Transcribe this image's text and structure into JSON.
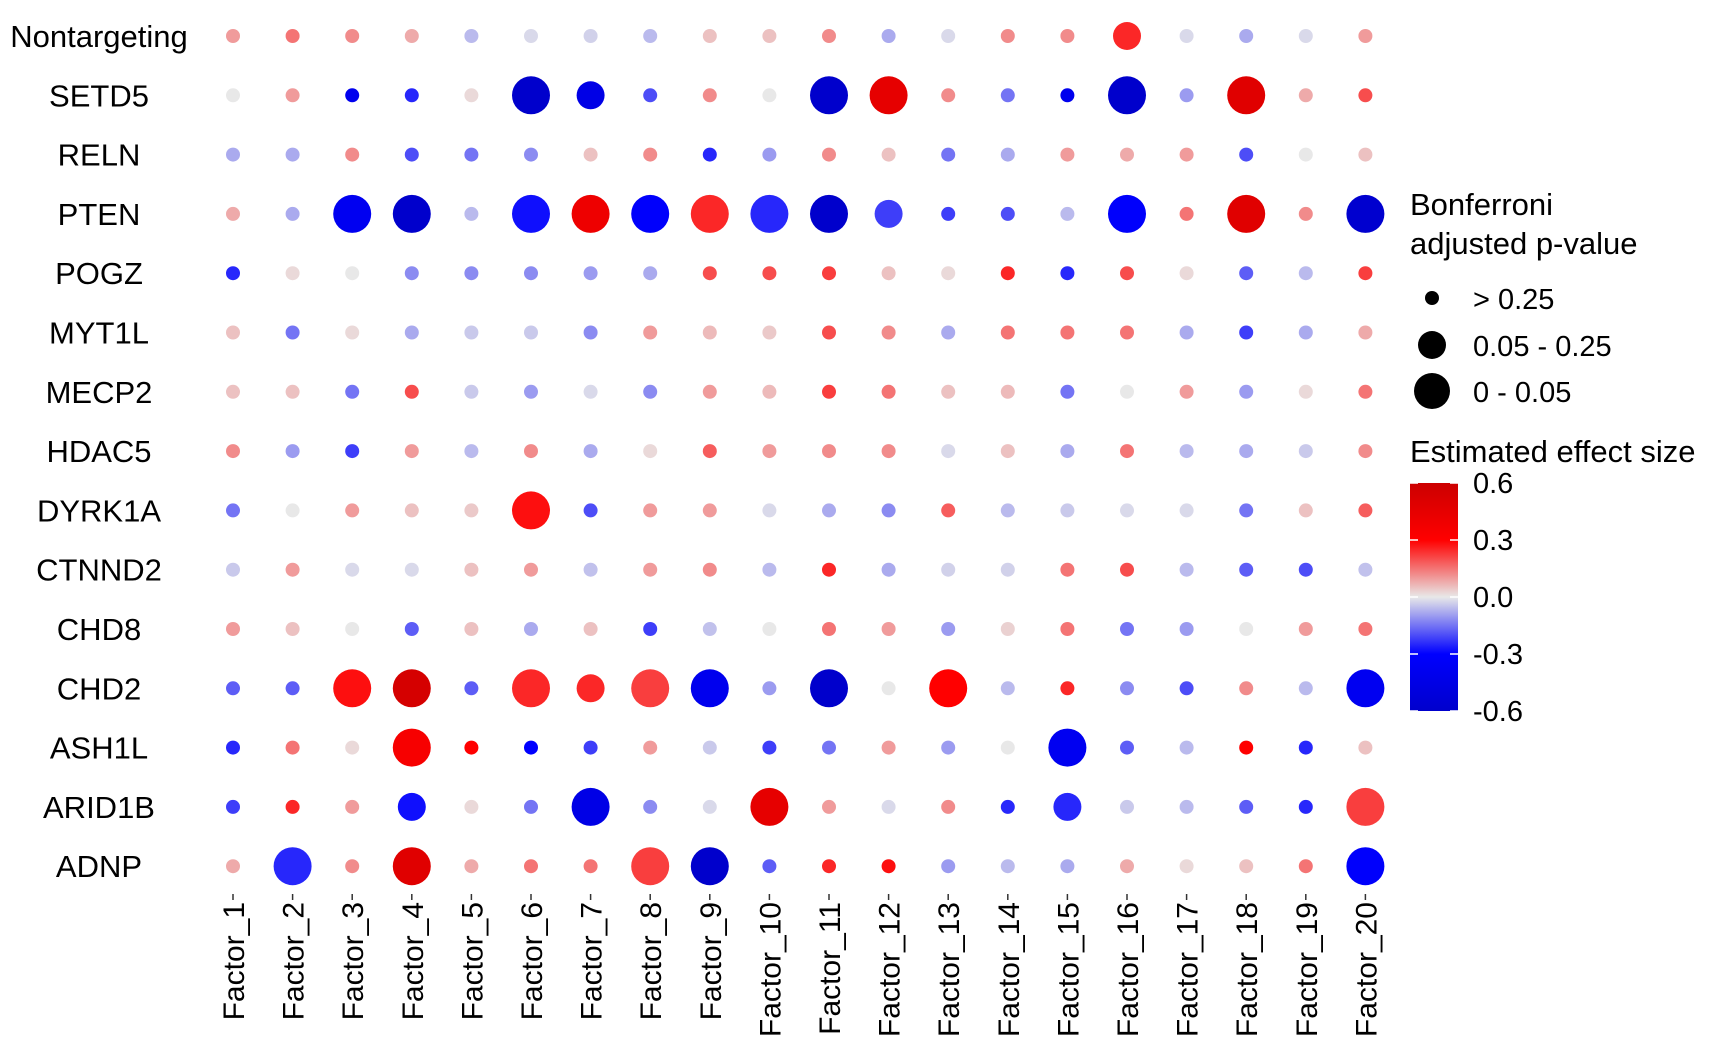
{
  "chart_data": {
    "type": "dot-heatmap",
    "rows": [
      "Nontargeting",
      "SETD5",
      "RELN",
      "PTEN",
      "POGZ",
      "MYT1L",
      "MECP2",
      "HDAC5",
      "DYRK1A",
      "CTNND2",
      "CHD8",
      "CHD2",
      "ASH1L",
      "ARID1B",
      "ADNP"
    ],
    "columns": [
      "Factor_1",
      "Factor_2",
      "Factor_3",
      "Factor_4",
      "Factor_5",
      "Factor_6",
      "Factor_7",
      "Factor_8",
      "Factor_9",
      "Factor_10",
      "Factor_11",
      "Factor_12",
      "Factor_13",
      "Factor_14",
      "Factor_15",
      "Factor_16",
      "Factor_17",
      "Factor_18",
      "Factor_19",
      "Factor_20"
    ],
    "effect": [
      [
        0.1,
        0.15,
        0.12,
        0.08,
        -0.06,
        -0.02,
        -0.03,
        -0.06,
        0.05,
        0.05,
        0.12,
        -0.08,
        -0.02,
        0.12,
        0.12,
        0.25,
        -0.02,
        -0.08,
        -0.02,
        0.1
      ],
      [
        0.0,
        0.1,
        -0.4,
        -0.25,
        0.02,
        -0.62,
        -0.45,
        -0.2,
        0.12,
        0.0,
        -0.68,
        0.45,
        0.12,
        -0.15,
        -0.4,
        -0.62,
        -0.1,
        0.48,
        0.08,
        0.2
      ],
      [
        -0.08,
        -0.08,
        0.12,
        -0.2,
        -0.15,
        -0.12,
        0.05,
        0.12,
        -0.25,
        -0.1,
        0.12,
        0.05,
        -0.15,
        -0.08,
        0.1,
        0.08,
        0.1,
        -0.2,
        0.0,
        0.05
      ],
      [
        0.08,
        -0.08,
        -0.38,
        -0.65,
        -0.06,
        -0.28,
        0.4,
        -0.32,
        0.25,
        -0.25,
        -0.62,
        -0.22,
        -0.22,
        -0.2,
        -0.06,
        -0.32,
        0.15,
        0.48,
        0.12,
        -0.58
      ],
      [
        -0.25,
        0.02,
        0.0,
        -0.12,
        -0.12,
        -0.12,
        -0.1,
        -0.08,
        0.2,
        0.2,
        0.22,
        0.05,
        0.02,
        0.25,
        -0.25,
        0.2,
        0.02,
        -0.18,
        -0.06,
        0.22
      ],
      [
        0.05,
        -0.15,
        0.02,
        -0.08,
        -0.04,
        -0.04,
        -0.12,
        0.1,
        0.06,
        0.04,
        0.2,
        0.12,
        -0.08,
        0.15,
        0.15,
        0.15,
        -0.08,
        -0.22,
        -0.08,
        0.08
      ],
      [
        0.05,
        0.05,
        -0.15,
        0.2,
        -0.04,
        -0.1,
        -0.02,
        -0.12,
        0.1,
        0.06,
        0.22,
        0.15,
        0.05,
        0.06,
        -0.15,
        0.0,
        0.1,
        -0.1,
        0.02,
        0.15
      ],
      [
        0.12,
        -0.1,
        -0.22,
        0.1,
        -0.06,
        0.12,
        -0.08,
        0.02,
        0.18,
        0.1,
        0.12,
        0.12,
        -0.02,
        0.05,
        -0.08,
        0.15,
        -0.06,
        -0.08,
        -0.04,
        0.12
      ],
      [
        -0.15,
        0.0,
        0.1,
        0.05,
        0.04,
        0.28,
        -0.2,
        0.1,
        0.1,
        -0.02,
        -0.08,
        -0.12,
        0.18,
        -0.06,
        -0.04,
        -0.02,
        -0.02,
        -0.15,
        0.05,
        0.18
      ],
      [
        -0.04,
        0.1,
        -0.02,
        -0.02,
        0.05,
        0.1,
        -0.05,
        0.1,
        0.12,
        -0.06,
        0.25,
        -0.08,
        -0.03,
        -0.03,
        0.15,
        0.2,
        -0.06,
        -0.18,
        -0.2,
        -0.05
      ],
      [
        0.1,
        0.05,
        0.0,
        -0.18,
        0.05,
        -0.08,
        0.05,
        -0.22,
        -0.05,
        0.0,
        0.15,
        0.1,
        -0.1,
        0.03,
        0.15,
        -0.15,
        -0.1,
        0.0,
        0.1,
        0.15
      ],
      [
        -0.18,
        -0.18,
        0.28,
        0.55,
        -0.18,
        0.25,
        0.25,
        0.22,
        -0.4,
        -0.1,
        -0.62,
        0.0,
        0.3,
        -0.06,
        0.25,
        -0.12,
        -0.2,
        0.12,
        -0.06,
        -0.38
      ],
      [
        -0.25,
        0.15,
        0.02,
        0.35,
        0.3,
        -0.3,
        -0.22,
        0.1,
        -0.04,
        -0.22,
        -0.15,
        0.1,
        -0.1,
        0.0,
        -0.38,
        -0.18,
        -0.06,
        0.3,
        -0.25,
        0.05
      ],
      [
        -0.22,
        0.25,
        0.1,
        -0.28,
        0.02,
        -0.15,
        -0.45,
        -0.12,
        -0.02,
        0.45,
        0.1,
        -0.02,
        0.12,
        -0.25,
        -0.25,
        -0.04,
        -0.06,
        -0.18,
        -0.25,
        0.22
      ],
      [
        0.08,
        -0.25,
        0.12,
        0.48,
        0.08,
        0.15,
        0.15,
        0.22,
        -0.65,
        -0.18,
        0.25,
        0.28,
        -0.1,
        -0.06,
        -0.08,
        0.08,
        0.02,
        0.05,
        0.15,
        -0.32
      ]
    ],
    "pvalue_bin": [
      [
        0,
        0,
        0,
        0,
        0,
        0,
        0,
        0,
        0,
        0,
        0,
        0,
        0,
        0,
        0,
        1,
        0,
        0,
        0,
        0
      ],
      [
        0,
        0,
        0,
        0,
        0,
        2,
        1,
        0,
        0,
        0,
        2,
        2,
        0,
        0,
        0,
        2,
        0,
        2,
        0,
        0
      ],
      [
        0,
        0,
        0,
        0,
        0,
        0,
        0,
        0,
        0,
        0,
        0,
        0,
        0,
        0,
        0,
        0,
        0,
        0,
        0,
        0
      ],
      [
        0,
        0,
        2,
        2,
        0,
        2,
        2,
        2,
        2,
        2,
        2,
        1,
        0,
        0,
        0,
        2,
        0,
        2,
        0,
        2
      ],
      [
        0,
        0,
        0,
        0,
        0,
        0,
        0,
        0,
        0,
        0,
        0,
        0,
        0,
        0,
        0,
        0,
        0,
        0,
        0,
        0
      ],
      [
        0,
        0,
        0,
        0,
        0,
        0,
        0,
        0,
        0,
        0,
        0,
        0,
        0,
        0,
        0,
        0,
        0,
        0,
        0,
        0
      ],
      [
        0,
        0,
        0,
        0,
        0,
        0,
        0,
        0,
        0,
        0,
        0,
        0,
        0,
        0,
        0,
        0,
        0,
        0,
        0,
        0
      ],
      [
        0,
        0,
        0,
        0,
        0,
        0,
        0,
        0,
        0,
        0,
        0,
        0,
        0,
        0,
        0,
        0,
        0,
        0,
        0,
        0
      ],
      [
        0,
        0,
        0,
        0,
        0,
        2,
        0,
        0,
        0,
        0,
        0,
        0,
        0,
        0,
        0,
        0,
        0,
        0,
        0,
        0
      ],
      [
        0,
        0,
        0,
        0,
        0,
        0,
        0,
        0,
        0,
        0,
        0,
        0,
        0,
        0,
        0,
        0,
        0,
        0,
        0,
        0
      ],
      [
        0,
        0,
        0,
        0,
        0,
        0,
        0,
        0,
        0,
        0,
        0,
        0,
        0,
        0,
        0,
        0,
        0,
        0,
        0,
        0
      ],
      [
        0,
        0,
        2,
        2,
        0,
        2,
        1,
        2,
        2,
        0,
        2,
        0,
        2,
        0,
        0,
        0,
        0,
        0,
        0,
        2
      ],
      [
        0,
        0,
        0,
        2,
        0,
        0,
        0,
        0,
        0,
        0,
        0,
        0,
        0,
        0,
        2,
        0,
        0,
        0,
        0,
        0
      ],
      [
        0,
        0,
        0,
        1,
        0,
        0,
        2,
        0,
        0,
        2,
        0,
        0,
        0,
        0,
        1,
        0,
        0,
        0,
        0,
        2
      ],
      [
        0,
        2,
        0,
        2,
        0,
        0,
        0,
        2,
        2,
        0,
        0,
        0,
        0,
        0,
        0,
        0,
        0,
        0,
        0,
        2
      ]
    ],
    "size_legend": {
      "title_line1": "Bonferroni",
      "title_line2": "adjusted p-value",
      "labels": [
        "> 0.25",
        "0.05 - 0.25",
        "0 - 0.05"
      ]
    },
    "color_legend": {
      "title": "Estimated effect size",
      "range": [
        -0.6,
        0.6
      ],
      "ticks": [
        "0.6",
        "0.3",
        "0.0",
        "-0.3",
        "-0.6"
      ],
      "tick_values": [
        0.6,
        0.3,
        0.0,
        -0.3,
        -0.6
      ],
      "low_color": "#0000ff",
      "mid_color": "#e8e8e8",
      "high_color": "#ff0000",
      "extreme_high_color": "#cc0000",
      "extreme_low_color": "#0000cc"
    }
  }
}
